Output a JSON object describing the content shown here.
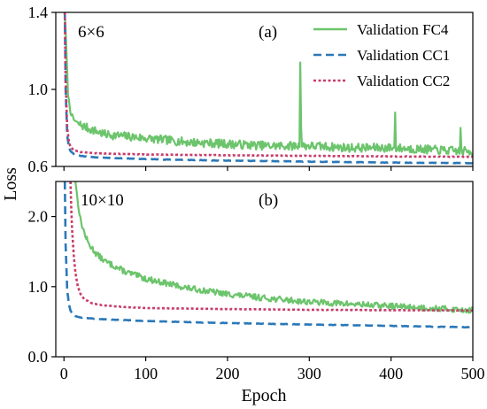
{
  "figure": {
    "ylabel": "Loss",
    "xlabel": "Epoch",
    "x_ticks": [
      0,
      100,
      200,
      300,
      400,
      500
    ]
  },
  "legend": [
    {
      "label": "Validation FC4",
      "color": "#6cc46c",
      "style": "solid"
    },
    {
      "label": "Validation CC1",
      "color": "#2a78b8",
      "style": "dashed"
    },
    {
      "label": "Validation CC2",
      "color": "#c83c6a",
      "style": "dotted"
    }
  ],
  "chart_data": [
    {
      "type": "line",
      "panel_label": "(a)",
      "size_label": "6×6",
      "xlim": [
        -10,
        500
      ],
      "ylim": [
        0.6,
        1.4
      ],
      "y_ticks": [
        "0.6",
        "1.0",
        "1.4"
      ],
      "y_tick_values": [
        0.6,
        1.0,
        1.4
      ],
      "legend_position": "top-right",
      "series": [
        {
          "name": "Validation FC4",
          "color": "#6cc46c",
          "style": "solid",
          "noise": 0.045,
          "seed": 7,
          "spikes": [
            [
              289,
              1.14
            ],
            [
              405,
              0.88
            ],
            [
              290,
              0.8
            ],
            [
              485,
              0.8
            ]
          ],
          "x": [
            1,
            3,
            5,
            8,
            12,
            20,
            30,
            50,
            75,
            100,
            150,
            200,
            250,
            300,
            350,
            400,
            450,
            500
          ],
          "y": [
            1.4,
            1.2,
            0.97,
            0.88,
            0.84,
            0.81,
            0.79,
            0.76,
            0.75,
            0.74,
            0.72,
            0.71,
            0.7,
            0.7,
            0.69,
            0.69,
            0.68,
            0.67
          ]
        },
        {
          "name": "Validation CC1",
          "color": "#2a78b8",
          "style": "dashed",
          "noise": 0.0025,
          "seed": 11,
          "spikes": [],
          "x": [
            1,
            2,
            4,
            6,
            8,
            12,
            20,
            40,
            100,
            200,
            300,
            400,
            500
          ],
          "y": [
            1.4,
            1.0,
            0.76,
            0.7,
            0.68,
            0.665,
            0.655,
            0.647,
            0.638,
            0.63,
            0.625,
            0.62,
            0.617
          ]
        },
        {
          "name": "Validation CC2",
          "color": "#c83c6a",
          "style": "dotted",
          "noise": 0.002,
          "seed": 23,
          "spikes": [],
          "x": [
            1,
            2,
            4,
            6,
            8,
            12,
            20,
            40,
            100,
            200,
            300,
            400,
            500
          ],
          "y": [
            1.4,
            1.05,
            0.8,
            0.73,
            0.7,
            0.685,
            0.675,
            0.668,
            0.662,
            0.658,
            0.655,
            0.652,
            0.65
          ]
        }
      ]
    },
    {
      "type": "line",
      "panel_label": "(b)",
      "size_label": "10×10",
      "xlim": [
        -10,
        500
      ],
      "ylim": [
        0.0,
        2.5
      ],
      "y_ticks": [
        "0.0",
        "1.0",
        "2.0"
      ],
      "y_tick_values": [
        0.0,
        1.0,
        2.0
      ],
      "series": [
        {
          "name": "Validation FC4",
          "color": "#6cc46c",
          "style": "solid",
          "noise": 0.085,
          "seed": 13,
          "spikes": [],
          "x": [
            14,
            16,
            18,
            20,
            25,
            30,
            40,
            50,
            75,
            100,
            150,
            200,
            250,
            300,
            350,
            400,
            450,
            500
          ],
          "y": [
            2.5,
            2.3,
            2.1,
            1.95,
            1.75,
            1.6,
            1.45,
            1.35,
            1.2,
            1.1,
            0.97,
            0.88,
            0.82,
            0.77,
            0.74,
            0.71,
            0.68,
            0.65
          ]
        },
        {
          "name": "Validation CC1",
          "color": "#2a78b8",
          "style": "dashed",
          "noise": 0.006,
          "seed": 17,
          "spikes": [],
          "x": [
            1,
            2,
            4,
            6,
            8,
            10,
            14,
            20,
            40,
            100,
            200,
            300,
            400,
            500
          ],
          "y": [
            2.5,
            1.6,
            0.95,
            0.75,
            0.66,
            0.62,
            0.58,
            0.56,
            0.54,
            0.51,
            0.48,
            0.46,
            0.44,
            0.42
          ]
        },
        {
          "name": "Validation CC2",
          "color": "#c83c6a",
          "style": "dotted",
          "noise": 0.004,
          "seed": 29,
          "spikes": [],
          "x": [
            8,
            9,
            10,
            12,
            14,
            17,
            20,
            25,
            35,
            50,
            80,
            100,
            200,
            300,
            400,
            500
          ],
          "y": [
            2.5,
            2.1,
            1.8,
            1.45,
            1.2,
            1.0,
            0.9,
            0.82,
            0.76,
            0.73,
            0.705,
            0.695,
            0.68,
            0.67,
            0.665,
            0.66
          ]
        }
      ]
    }
  ]
}
